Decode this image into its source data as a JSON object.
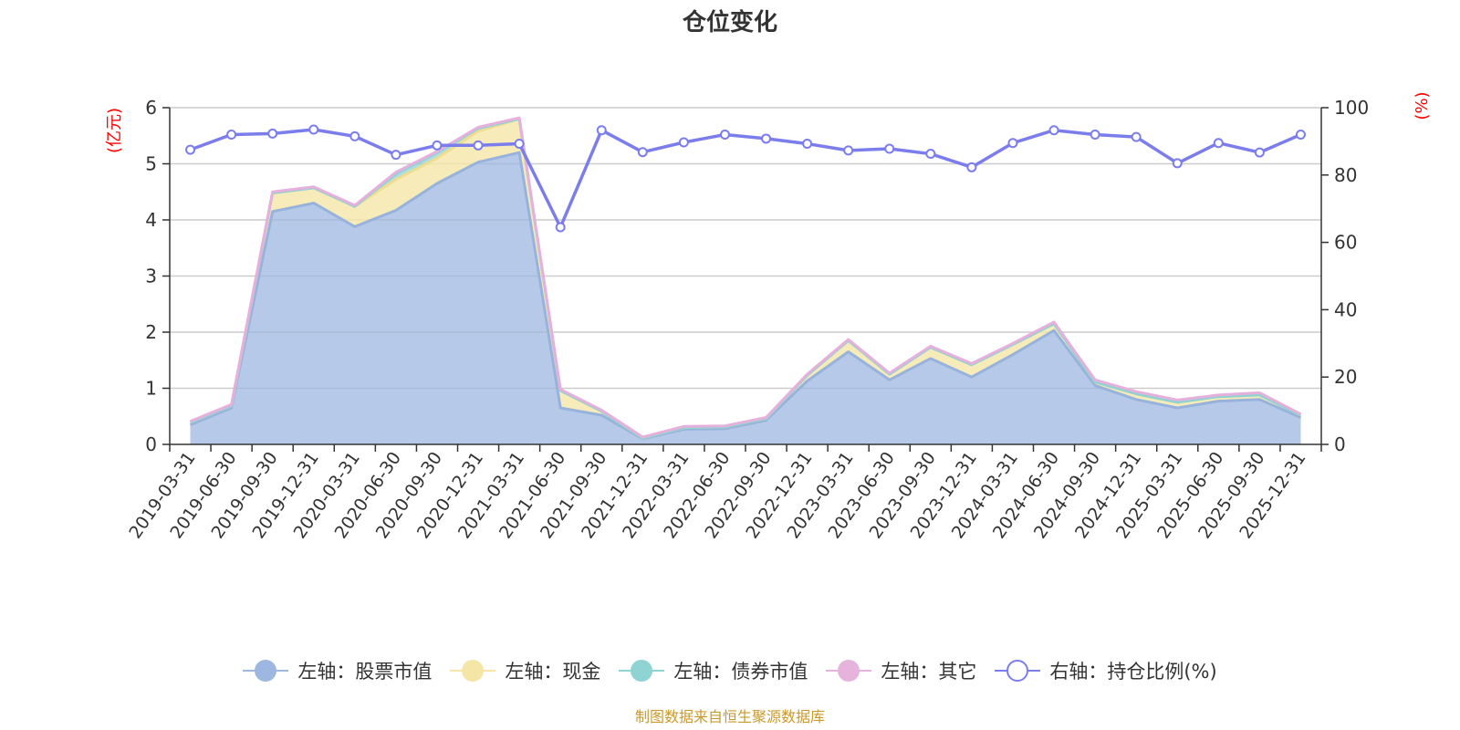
{
  "chart_data": {
    "type": "area",
    "title": "仓位变化",
    "left_axis_unit": "(亿元)",
    "right_axis_unit": "(%)",
    "left_ylim": [
      0,
      6
    ],
    "left_ticks": [
      "0",
      "1",
      "2",
      "3",
      "4",
      "5",
      "6"
    ],
    "right_ylim": [
      0,
      100
    ],
    "right_ticks": [
      "0",
      "20",
      "40",
      "60",
      "80",
      "100"
    ],
    "categories": [
      "2019-03-31",
      "2019-06-30",
      "2019-09-30",
      "2019-12-31",
      "2020-03-31",
      "2020-06-30",
      "2020-09-30",
      "2020-12-31",
      "2021-03-31",
      "2021-06-30",
      "2021-09-30",
      "2021-12-31",
      "2022-03-31",
      "2022-06-30",
      "2022-09-30",
      "2022-12-31",
      "2023-03-31",
      "2023-06-30",
      "2023-09-30",
      "2023-12-31",
      "2024-03-31",
      "2024-06-30",
      "2024-09-30",
      "2024-12-31",
      "2025-03-31",
      "2025-06-30",
      "2025-09-30",
      "2025-12-31"
    ],
    "series": [
      {
        "name": "左轴：股票市值",
        "axis": "left",
        "color": "#9db7e0",
        "values": [
          0.35,
          0.65,
          4.15,
          4.3,
          3.88,
          4.17,
          4.65,
          5.03,
          5.2,
          0.65,
          0.52,
          0.1,
          0.27,
          0.28,
          0.43,
          1.13,
          1.65,
          1.15,
          1.53,
          1.2,
          1.6,
          2.03,
          1.05,
          0.8,
          0.65,
          0.77,
          0.8,
          0.48
        ]
      },
      {
        "name": "左轴：现金",
        "axis": "left",
        "color": "#f5e6a8",
        "values": [
          0.04,
          0.04,
          0.33,
          0.27,
          0.36,
          0.55,
          0.45,
          0.55,
          0.6,
          0.31,
          0.07,
          0.01,
          0.03,
          0.03,
          0.03,
          0.1,
          0.2,
          0.1,
          0.2,
          0.22,
          0.18,
          0.12,
          0.06,
          0.1,
          0.1,
          0.08,
          0.08,
          0.04
        ]
      },
      {
        "name": "左轴：债券市值",
        "axis": "left",
        "color": "#8fd3d3",
        "values": [
          0,
          0,
          0,
          0,
          0,
          0.1,
          0.1,
          0.05,
          0,
          0,
          0,
          0,
          0,
          0,
          0,
          0,
          0,
          0,
          0,
          0,
          0,
          0,
          0,
          0,
          0,
          0,
          0,
          0
        ]
      },
      {
        "name": "左轴：其它",
        "axis": "left",
        "color": "#e6b3dc",
        "values": [
          0.02,
          0.02,
          0.02,
          0.02,
          0.02,
          0.03,
          0.02,
          0.02,
          0.02,
          0.02,
          0.02,
          0.02,
          0.02,
          0.02,
          0.02,
          0.02,
          0.02,
          0.02,
          0.02,
          0.02,
          0.02,
          0.03,
          0.04,
          0.04,
          0.04,
          0.03,
          0.04,
          0.02
        ]
      },
      {
        "name": "右轴：持仓比例(%)",
        "axis": "right",
        "color": "#7b7ded",
        "values": [
          87.5,
          92,
          92.3,
          93.5,
          91.5,
          86,
          88.8,
          88.8,
          89.3,
          64.5,
          93.3,
          86.8,
          89.7,
          92,
          90.8,
          89.3,
          87.3,
          87.8,
          86.3,
          82.3,
          89.5,
          93.3,
          92,
          91.3,
          83.5,
          89.5,
          86.7,
          92
        ]
      }
    ]
  },
  "legend": [
    {
      "label": "左轴：股票市值",
      "color": "#9db7e0",
      "style": "filled"
    },
    {
      "label": "左轴：现金",
      "color": "#f5e6a8",
      "style": "filled"
    },
    {
      "label": "左轴：债券市值",
      "color": "#8fd3d3",
      "style": "filled"
    },
    {
      "label": "左轴：其它",
      "color": "#e6b3dc",
      "style": "filled"
    },
    {
      "label": "右轴：持仓比例(%)",
      "color": "#7b7ded",
      "style": "hollow"
    }
  ],
  "footer": "制图数据来自恒生聚源数据库"
}
